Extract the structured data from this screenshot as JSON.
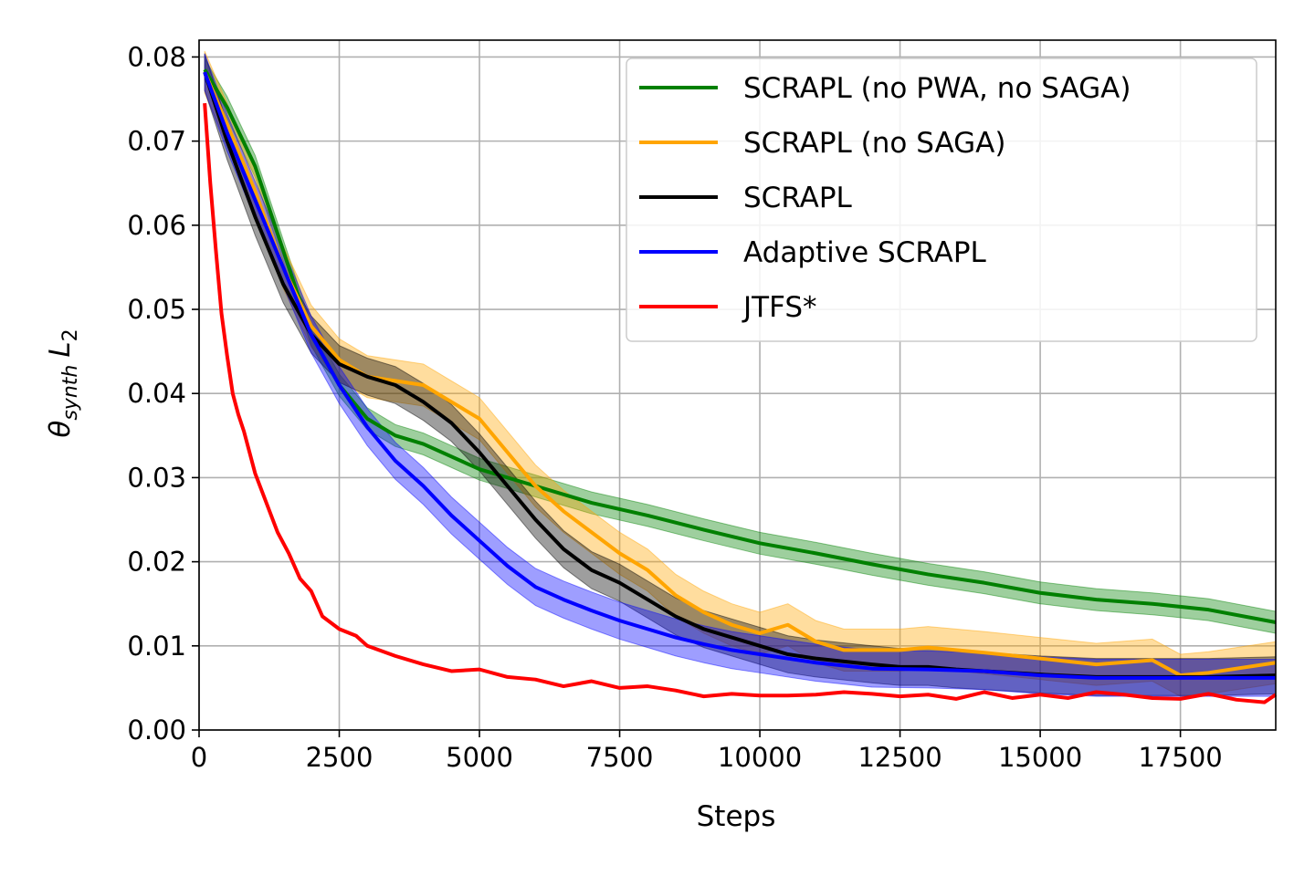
{
  "chart_data": {
    "type": "line",
    "xlabel": "Steps",
    "ylabel": {
      "base": "θ",
      "sub": "synth",
      "var": "L",
      "var_sub": "2"
    },
    "xlim": [
      0,
      19200
    ],
    "ylim": [
      0,
      0.082
    ],
    "xticks": [
      {
        "value": 0,
        "label": "0"
      },
      {
        "value": 2500,
        "label": "2500"
      },
      {
        "value": 5000,
        "label": "5000"
      },
      {
        "value": 7500,
        "label": "7500"
      },
      {
        "value": 10000,
        "label": "10000"
      },
      {
        "value": 12500,
        "label": "12500"
      },
      {
        "value": 15000,
        "label": "15000"
      },
      {
        "value": 17500,
        "label": "17500"
      }
    ],
    "yticks": [
      {
        "value": 0.0,
        "label": "0.00"
      },
      {
        "value": 0.01,
        "label": "0.01"
      },
      {
        "value": 0.02,
        "label": "0.02"
      },
      {
        "value": 0.03,
        "label": "0.03"
      },
      {
        "value": 0.04,
        "label": "0.04"
      },
      {
        "value": 0.05,
        "label": "0.05"
      },
      {
        "value": 0.06,
        "label": "0.06"
      },
      {
        "value": 0.07,
        "label": "0.07"
      },
      {
        "value": 0.08,
        "label": "0.08"
      }
    ],
    "grid": true,
    "legend_position": "top-right",
    "series": [
      {
        "name": "SCRAPL (no PWA, no SAGA)",
        "color": "#008000",
        "band": 0.0013,
        "x": [
          100,
          500,
          1000,
          1500,
          2000,
          2500,
          3000,
          3500,
          4000,
          5000,
          6000,
          7000,
          8000,
          9000,
          10000,
          11000,
          12000,
          13000,
          14000,
          15000,
          16000,
          17000,
          18000,
          19200
        ],
        "y": [
          0.0785,
          0.074,
          0.067,
          0.057,
          0.047,
          0.041,
          0.037,
          0.035,
          0.034,
          0.031,
          0.029,
          0.027,
          0.0255,
          0.0238,
          0.0222,
          0.021,
          0.0197,
          0.0185,
          0.0175,
          0.0163,
          0.0155,
          0.015,
          0.0143,
          0.0128
        ]
      },
      {
        "name": "SCRAPL (no SAGA)",
        "color": "#FFA500",
        "band": 0.0025,
        "x": [
          100,
          500,
          1000,
          1500,
          2000,
          2500,
          3000,
          3500,
          4000,
          4500,
          5000,
          5500,
          6000,
          6500,
          7000,
          7500,
          8000,
          8500,
          9000,
          9500,
          10000,
          10500,
          11000,
          11500,
          12000,
          12500,
          13000,
          13500,
          14000,
          15000,
          16000,
          17000,
          17500,
          18000,
          19200
        ],
        "y": [
          0.0782,
          0.072,
          0.064,
          0.055,
          0.048,
          0.044,
          0.042,
          0.0415,
          0.041,
          0.039,
          0.037,
          0.033,
          0.029,
          0.026,
          0.0235,
          0.021,
          0.019,
          0.016,
          0.014,
          0.0125,
          0.0115,
          0.0125,
          0.0105,
          0.0095,
          0.0095,
          0.0095,
          0.0098,
          0.0095,
          0.0092,
          0.0085,
          0.0078,
          0.0083,
          0.0065,
          0.0068,
          0.008
        ]
      },
      {
        "name": "SCRAPL",
        "color": "#000000",
        "band": 0.0022,
        "x": [
          100,
          500,
          1000,
          1500,
          2000,
          2500,
          3000,
          3500,
          4000,
          4500,
          5000,
          5500,
          6000,
          6500,
          7000,
          7500,
          8000,
          8500,
          9000,
          9500,
          10000,
          10500,
          11000,
          12000,
          12500,
          13000,
          13500,
          14000,
          15000,
          16000,
          17000,
          18000,
          19200
        ],
        "y": [
          0.0782,
          0.07,
          0.061,
          0.053,
          0.047,
          0.0435,
          0.042,
          0.041,
          0.039,
          0.0365,
          0.033,
          0.029,
          0.025,
          0.0215,
          0.019,
          0.0175,
          0.0155,
          0.0135,
          0.012,
          0.011,
          0.01,
          0.009,
          0.0085,
          0.0078,
          0.0075,
          0.0075,
          0.0072,
          0.007,
          0.0066,
          0.0063,
          0.0063,
          0.0063,
          0.0065
        ]
      },
      {
        "name": "Adaptive SCRAPL",
        "color": "#0000FF",
        "band": 0.0022,
        "x": [
          100,
          500,
          1000,
          1500,
          2000,
          2500,
          3000,
          3500,
          4000,
          4500,
          5000,
          5500,
          6000,
          6500,
          7000,
          7500,
          8000,
          8500,
          9000,
          9500,
          10000,
          11000,
          12000,
          13000,
          14000,
          15000,
          16000,
          17000,
          18000,
          19200
        ],
        "y": [
          0.0782,
          0.071,
          0.063,
          0.055,
          0.047,
          0.041,
          0.036,
          0.032,
          0.029,
          0.0255,
          0.0225,
          0.0195,
          0.017,
          0.0155,
          0.0142,
          0.013,
          0.012,
          0.011,
          0.0102,
          0.0095,
          0.009,
          0.008,
          0.0073,
          0.0072,
          0.007,
          0.0065,
          0.0062,
          0.0062,
          0.0062,
          0.0062
        ]
      },
      {
        "name": "JTFS*",
        "color": "#FF0000",
        "band": 0,
        "x": [
          100,
          200,
          300,
          400,
          500,
          600,
          700,
          800,
          900,
          1000,
          1200,
          1400,
          1600,
          1800,
          2000,
          2200,
          2500,
          2800,
          3000,
          3500,
          4000,
          4500,
          5000,
          5500,
          6000,
          6500,
          7000,
          7500,
          8000,
          8500,
          9000,
          9500,
          10000,
          10500,
          11000,
          11500,
          12000,
          12500,
          13000,
          13500,
          14000,
          14500,
          15000,
          15500,
          16000,
          16500,
          17000,
          17500,
          18000,
          18500,
          19000,
          19200
        ],
        "y": [
          0.0745,
          0.065,
          0.057,
          0.0495,
          0.0445,
          0.04,
          0.0375,
          0.0355,
          0.033,
          0.0305,
          0.027,
          0.0235,
          0.021,
          0.018,
          0.0165,
          0.0135,
          0.012,
          0.0112,
          0.01,
          0.0088,
          0.0078,
          0.007,
          0.0072,
          0.0063,
          0.006,
          0.0052,
          0.0058,
          0.005,
          0.0052,
          0.0047,
          0.004,
          0.0043,
          0.0041,
          0.0041,
          0.0042,
          0.0045,
          0.0043,
          0.004,
          0.0042,
          0.0037,
          0.0045,
          0.0038,
          0.0042,
          0.0038,
          0.0045,
          0.0042,
          0.0038,
          0.0037,
          0.0043,
          0.0036,
          0.0033,
          0.0042
        ]
      }
    ]
  }
}
